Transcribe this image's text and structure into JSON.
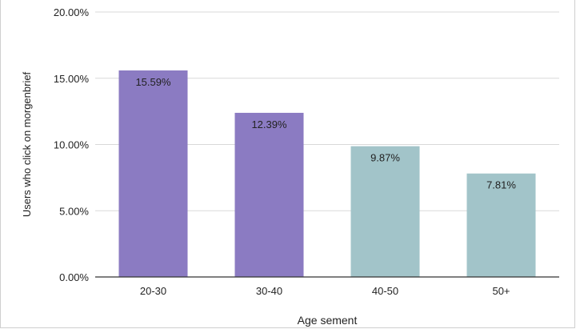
{
  "chart_data": {
    "type": "bar",
    "categories": [
      "20-30",
      "30-40",
      "40-50",
      "50+"
    ],
    "values": [
      15.59,
      12.39,
      9.87,
      7.81
    ],
    "data_labels": [
      "15.59%",
      "12.39%",
      "9.87%",
      "7.81%"
    ],
    "bar_colors": [
      "#8b7bc2",
      "#8b7bc2",
      "#a2c4c9",
      "#a2c4c9"
    ],
    "ylim": [
      0,
      20
    ],
    "yticks": [
      0,
      5,
      10,
      15,
      20
    ],
    "ytick_labels": [
      "0.00%",
      "5.00%",
      "10.00%",
      "15.00%",
      "20.00%"
    ],
    "xlabel": "Age sement",
    "ylabel": "Users who click on morgenbrief",
    "title": "",
    "grid": true,
    "legend": "none"
  }
}
